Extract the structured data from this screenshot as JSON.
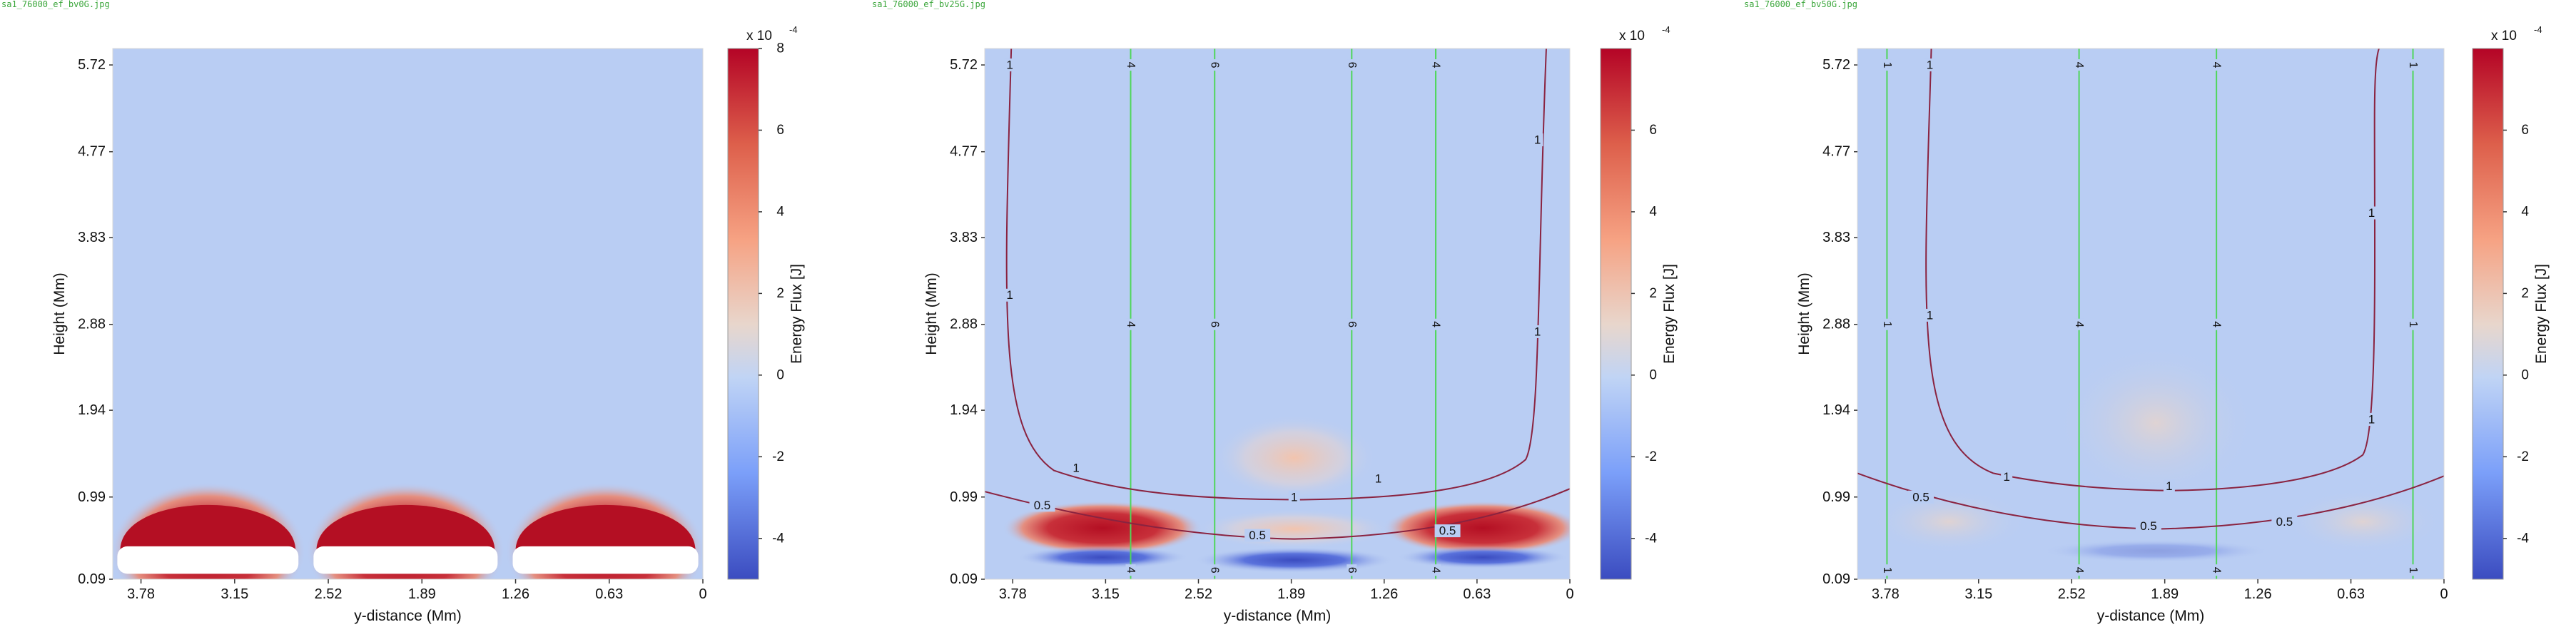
{
  "colors": {
    "background": "#b9cdf3",
    "red": "#b40f23",
    "blue": "#3b4cc0",
    "white": "#ffffff",
    "field_line": "#4fd65a",
    "contour": "#8a2340",
    "filename": "#3aa63a"
  },
  "chart_data": [
    {
      "type": "heatmap",
      "filename": "sa1_76000_ef_bv0G.jpg",
      "xlabel": "y-distance (Mm)",
      "ylabel": "Height (Mm)",
      "x_ticks": [
        "3.78",
        "3.15",
        "2.52",
        "1.89",
        "1.26",
        "0.63",
        "0"
      ],
      "y_ticks": [
        "0.09",
        "0.99",
        "1.94",
        "2.88",
        "3.83",
        "4.77",
        "5.72"
      ],
      "xlim": [
        3.97,
        0
      ],
      "ylim": [
        0.09,
        5.9
      ],
      "colorbar": {
        "label": "Energy Flux [J]",
        "exponent": "x 10",
        "exponent_power": "-4",
        "ticks": [
          "8",
          "6",
          "4",
          "2",
          "0",
          "-2",
          "-4"
        ],
        "range": [
          -5,
          8
        ]
      },
      "features": {
        "red_domes": [
          {
            "x_from": 3.92,
            "x_to": 2.74,
            "height_top": 1.04
          },
          {
            "x_from": 2.6,
            "x_to": 1.4,
            "height_top": 1.04
          },
          {
            "x_from": 1.26,
            "x_to": 0.05,
            "height_top": 1.04
          }
        ],
        "saturated_band_height": [
          0.15,
          0.45
        ]
      }
    },
    {
      "type": "heatmap",
      "filename": "sa1_76000_ef_bv25G.jpg",
      "xlabel": "y-distance (Mm)",
      "ylabel": "Height (Mm)",
      "x_ticks": [
        "3.78",
        "3.15",
        "2.52",
        "1.89",
        "1.26",
        "0.63",
        "0"
      ],
      "y_ticks": [
        "0.09",
        "0.99",
        "1.94",
        "2.88",
        "3.83",
        "4.77",
        "5.72"
      ],
      "xlim": [
        3.97,
        0
      ],
      "ylim": [
        0.09,
        5.9
      ],
      "colorbar": {
        "label": "Energy Flux [J]",
        "exponent": "x 10",
        "exponent_power": "-4",
        "ticks": [
          "6",
          "4",
          "2",
          "0",
          "-2",
          "-4"
        ],
        "range": [
          -5,
          8
        ]
      },
      "field_lines": [
        {
          "x": 2.98,
          "label": "4"
        },
        {
          "x": 2.41,
          "label": "6"
        },
        {
          "x": 1.48,
          "label": "6"
        },
        {
          "x": 0.91,
          "label": "4"
        }
      ],
      "contours": [
        {
          "level": "1",
          "label_positions": [
            [
              3.8,
              5.72
            ],
            [
              3.8,
              3.2
            ],
            [
              3.35,
              1.31
            ],
            [
              1.87,
              0.99
            ],
            [
              1.3,
              1.19
            ],
            [
              0.22,
              2.8
            ],
            [
              0.22,
              4.9
            ]
          ]
        },
        {
          "level": "0.5",
          "label_positions": [
            [
              3.58,
              0.9
            ],
            [
              2.12,
              0.57
            ],
            [
              0.83,
              0.62
            ]
          ]
        }
      ]
    },
    {
      "type": "heatmap",
      "filename": "sa1_76000_ef_bv50G.jpg",
      "xlabel": "y-distance (Mm)",
      "ylabel": "Height (Mm)",
      "x_ticks": [
        "3.78",
        "3.15",
        "2.52",
        "1.89",
        "1.26",
        "0.63",
        "0"
      ],
      "y_ticks": [
        "0.09",
        "0.99",
        "1.94",
        "2.88",
        "3.83",
        "4.77",
        "5.72"
      ],
      "xlim": [
        3.97,
        0
      ],
      "ylim": [
        0.09,
        5.9
      ],
      "colorbar": {
        "label": "Energy Flux [J]",
        "exponent": "x 10",
        "exponent_power": "-4",
        "ticks": [
          "6",
          "4",
          "2",
          "0",
          "-2",
          "-4"
        ],
        "range": [
          -5,
          8
        ]
      },
      "field_lines": [
        {
          "x": 3.77,
          "label": "1"
        },
        {
          "x": 2.47,
          "label": "4"
        },
        {
          "x": 1.54,
          "label": "4"
        },
        {
          "x": 0.21,
          "label": "1"
        }
      ],
      "contours": [
        {
          "level": "1",
          "label_positions": [
            [
              3.48,
              5.72
            ],
            [
              3.48,
              2.98
            ],
            [
              2.96,
              1.21
            ],
            [
              1.86,
              1.11
            ],
            [
              0.49,
              4.1
            ],
            [
              0.49,
              1.84
            ]
          ]
        },
        {
          "level": "0.5",
          "label_positions": [
            [
              3.54,
              0.99
            ],
            [
              2.0,
              0.67
            ],
            [
              1.08,
              0.72
            ]
          ]
        }
      ]
    }
  ]
}
